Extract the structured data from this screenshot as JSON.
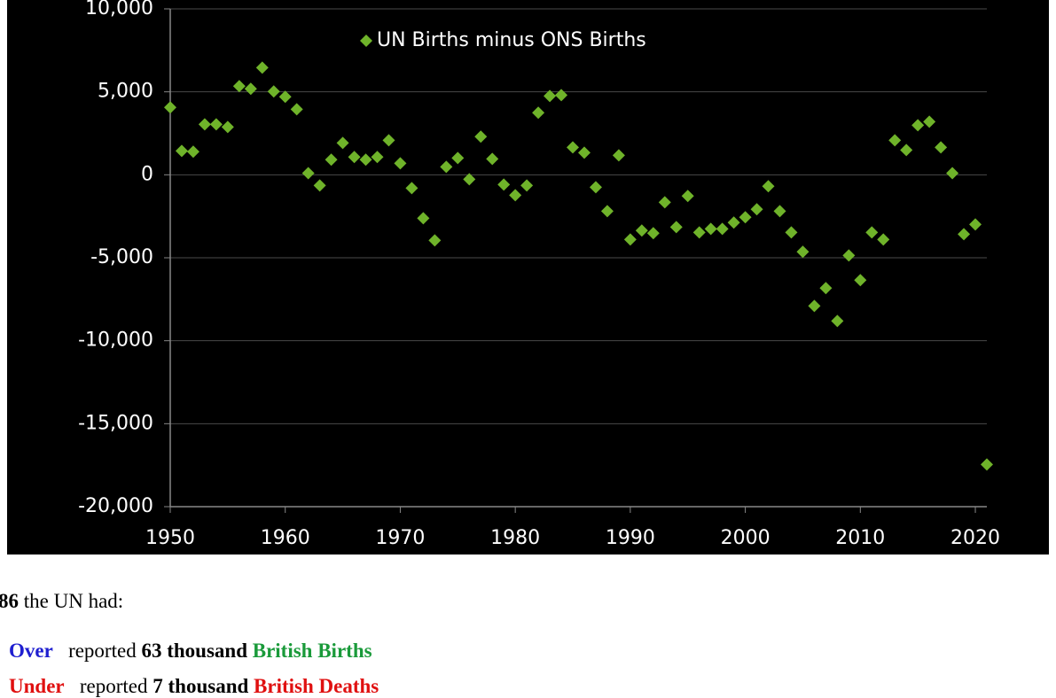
{
  "chart_data": {
    "type": "scatter",
    "x": [
      1950,
      1951,
      1952,
      1953,
      1954,
      1955,
      1956,
      1957,
      1958,
      1959,
      1960,
      1961,
      1962,
      1963,
      1964,
      1965,
      1966,
      1967,
      1968,
      1969,
      1970,
      1971,
      1972,
      1973,
      1974,
      1975,
      1976,
      1977,
      1978,
      1979,
      1980,
      1981,
      1982,
      1983,
      1984,
      1985,
      1986,
      1987,
      1988,
      1989,
      1990,
      1991,
      1992,
      1993,
      1994,
      1995,
      1996,
      1997,
      1998,
      1999,
      2000,
      2001,
      2002,
      2003,
      2004,
      2005,
      2006,
      2007,
      2008,
      2009,
      2010,
      2011,
      2012,
      2013,
      2014,
      2015,
      2016,
      2017,
      2018,
      2019,
      2020,
      2021
    ],
    "series": [
      {
        "name": "UN Births minus ONS Births",
        "color": "#6fb32a",
        "values": [
          4060,
          1440,
          1390,
          3040,
          3040,
          2880,
          5340,
          5180,
          6460,
          5020,
          4700,
          3950,
          100,
          -640,
          910,
          1920,
          1070,
          910,
          1070,
          2080,
          690,
          -800,
          -2620,
          -3950,
          480,
          1010,
          -270,
          2300,
          960,
          -590,
          -1230,
          -640,
          3740,
          4750,
          4800,
          1650,
          1330,
          -750,
          -2190,
          1170,
          -3900,
          -3360,
          -3520,
          -1660,
          -3150,
          -1280,
          -3470,
          -3260,
          -3260,
          -2880,
          -2560,
          -2080,
          -690,
          -2190,
          -3470,
          -4640,
          -7900,
          -6830,
          -8810,
          -4860,
          -6350,
          -3470,
          -3900,
          2080,
          1490,
          2990,
          3200,
          1650,
          100,
          -3580,
          -2990,
          -17460
        ]
      }
    ],
    "xlim": [
      1950,
      2021
    ],
    "xticks": [
      1950,
      1960,
      1970,
      1980,
      1990,
      2000,
      2010,
      2020
    ],
    "ylim": [
      -20000,
      10000
    ],
    "yticks": [
      {
        "value": -20000,
        "label": "-20,000"
      },
      {
        "value": -15000,
        "label": "-15,000"
      },
      {
        "value": -10000,
        "label": "-10,000"
      },
      {
        "value": -5000,
        "label": "-5,000"
      },
      0,
      {
        "value": 5000,
        "label": "5,000"
      },
      {
        "value": 10000,
        "label": "10,000"
      }
    ],
    "grid": true,
    "legend": "top"
  },
  "text": {
    "intro": [
      "86",
      " the UN had:"
    ],
    "over": [
      "Over",
      "   reported ",
      "63 thousand",
      " ",
      "British Births"
    ],
    "under": [
      "Under",
      "   reported ",
      "7 thousand",
      " ",
      "British Deaths"
    ]
  }
}
